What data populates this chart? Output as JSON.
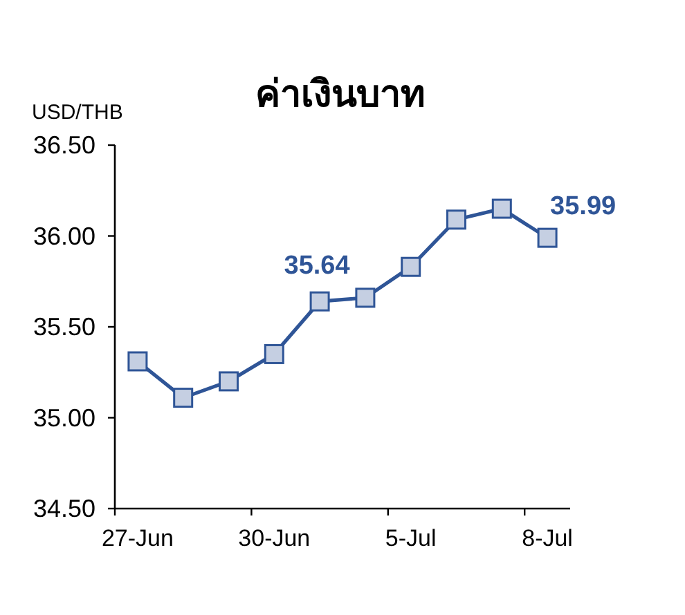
{
  "chart_data": {
    "type": "line",
    "title": "ค่าเงินบาท",
    "ylabel": "USD/THB",
    "categories": [
      "27-Jun",
      null,
      null,
      "30-Jun",
      null,
      null,
      "5-Jul",
      null,
      null,
      "8-Jul"
    ],
    "values": [
      35.31,
      35.11,
      35.2,
      35.35,
      35.64,
      35.66,
      35.83,
      36.09,
      36.15,
      35.99
    ],
    "value_labels": [
      null,
      null,
      null,
      null,
      "35.64",
      null,
      null,
      null,
      null,
      "35.99"
    ],
    "color": "#2f5597",
    "marker": "square",
    "line_style": "solid",
    "ylim": [
      34.5,
      36.5
    ],
    "yticks": [
      {
        "value": 34.5,
        "label": "34.50"
      },
      {
        "value": 35.0,
        "label": "35.00"
      },
      {
        "value": 35.5,
        "label": "35.50"
      },
      {
        "value": 36.0,
        "label": "36.00"
      },
      {
        "value": 36.5,
        "label": "36.50"
      }
    ]
  }
}
